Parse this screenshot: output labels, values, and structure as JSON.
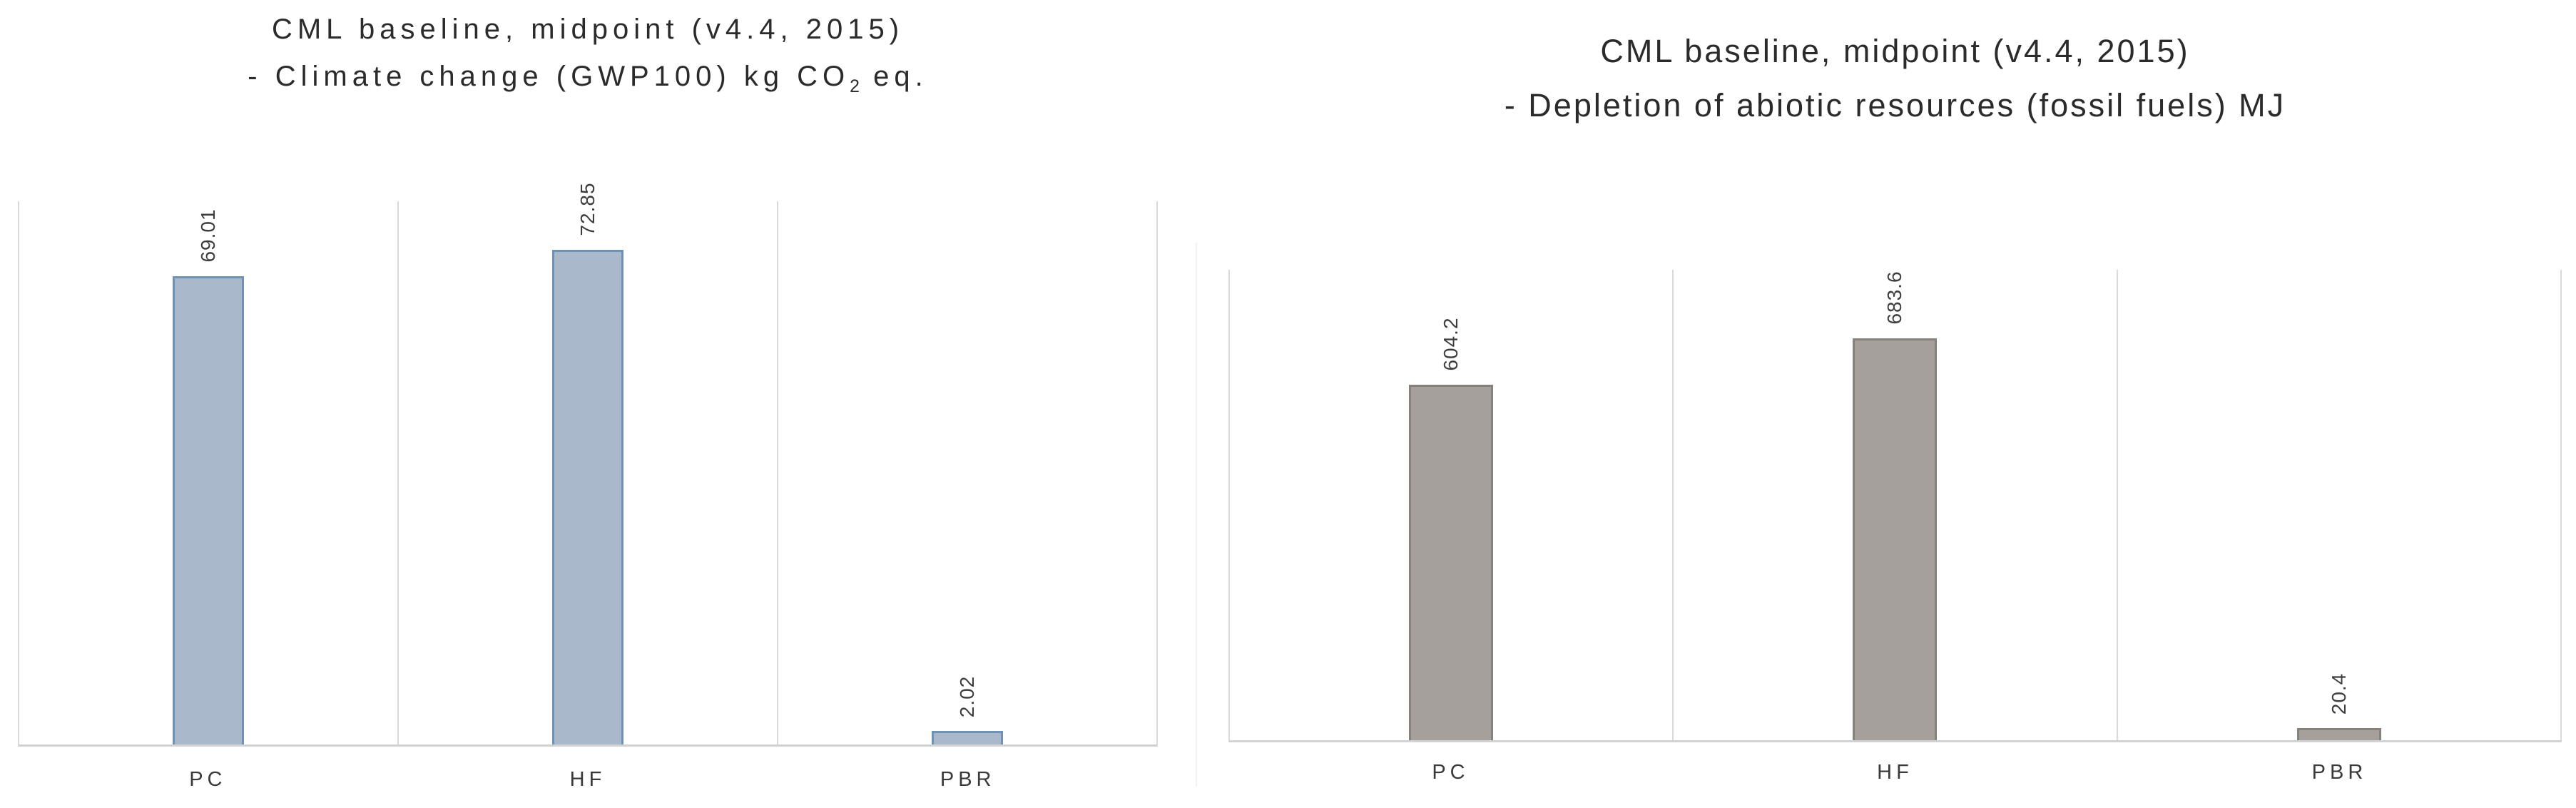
{
  "chart_data": [
    {
      "type": "bar",
      "title": "CML baseline, midpoint (v4.4, 2015) - Climate change (GWP100) kg CO2 eq.",
      "title_line1": "CML baseline, midpoint (v4.4, 2015)",
      "title_line2_pre": "- Climate change (GWP100) kg CO",
      "title_line2_sub": "2",
      "title_line2_post": " eq.",
      "categories": [
        "PC",
        "HF",
        "PBR"
      ],
      "values": [
        69.01,
        72.85,
        2.02
      ],
      "value_labels": [
        "69.01",
        "72.85",
        "2.02"
      ],
      "xlabel": "",
      "ylabel": "",
      "ylim": [
        0,
        80
      ],
      "legend": "none",
      "gridlines": "vertical-category-separators",
      "bar_fill": "#a9b8cb",
      "bar_border": "#6f91b3",
      "data_label_rotation": "90-degrees-counterclockwise"
    },
    {
      "type": "bar",
      "title": "CML baseline, midpoint (v4.4, 2015) - Depletion of abiotic resources (fossil fuels) MJ",
      "title_line1": "CML baseline, midpoint (v4.4, 2015)",
      "title_line2": "- Depletion of abiotic resources (fossil fuels) MJ",
      "categories": [
        "PC",
        "HF",
        "PBR"
      ],
      "values": [
        604.2,
        683.6,
        20.4
      ],
      "value_labels": [
        "604.2",
        "683.6",
        "20.4"
      ],
      "xlabel": "",
      "ylabel": "",
      "ylim": [
        0,
        800
      ],
      "legend": "none",
      "gridlines": "vertical-category-separators",
      "bar_fill": "#a5a09b",
      "bar_border": "#86817b",
      "data_label_rotation": "90-degrees-counterclockwise"
    }
  ],
  "colors": {
    "plot_border": "#d9d9d9",
    "axis_line": "#d2d2d2",
    "title_text": "#2b2b2b",
    "label_text": "#3d3d3d",
    "background": "#ffffff"
  }
}
